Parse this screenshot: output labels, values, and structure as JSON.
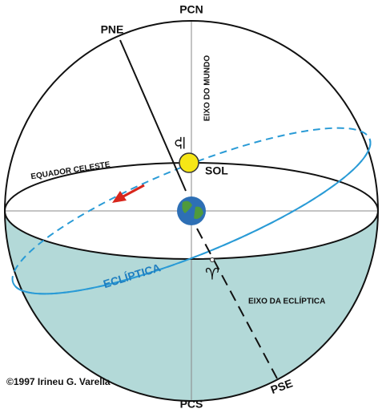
{
  "diagram": {
    "labels": {
      "pcn": "PCN",
      "pne": "PNE",
      "world_axis": "EIXO DO MUNDO",
      "libra": "♎",
      "sun": "SOL",
      "celestial_equator": "EQUADOR CELESTE",
      "ecliptic": "ECLÍPTICA",
      "aries": "♈",
      "ecliptic_axis": "EIXO DA ECLÍPTICA",
      "pse": "PSE",
      "pcs": "PCS",
      "copyright": "©1997 Irineu G. Varella"
    }
  }
}
